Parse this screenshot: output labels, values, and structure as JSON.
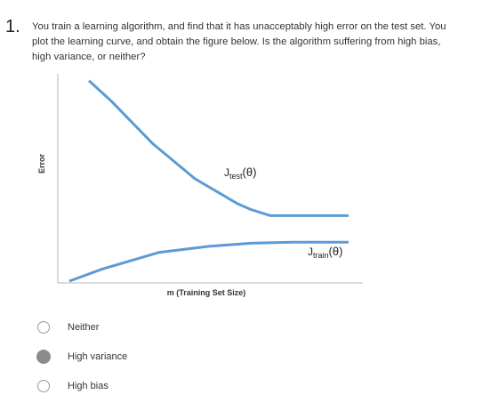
{
  "question": {
    "number": "1.",
    "text": "You train a learning algorithm, and find that it has unacceptably high error on the test set. You plot the learning curve, and obtain the figure below. Is the algorithm suffering from high bias, high variance, or neither?"
  },
  "chart_data": {
    "type": "line",
    "xlabel": "m (Training Set Size)",
    "ylabel": "Error",
    "ticks": "none",
    "grid": false,
    "line_color": "#5b9bd5",
    "series": [
      {
        "name": "J_test(θ)",
        "label_main": "J",
        "label_sub": "test",
        "label_suffix": "(θ)",
        "x": [
          0.07,
          0.15,
          0.3,
          0.45,
          0.6,
          0.65,
          0.72,
          0.85,
          1.0
        ],
        "y": [
          0.98,
          0.88,
          0.67,
          0.5,
          0.38,
          0.35,
          0.32,
          0.32,
          0.32
        ]
      },
      {
        "name": "J_train(θ)",
        "label_main": "J",
        "label_sub": "train",
        "label_suffix": "(θ)",
        "x": [
          0.0,
          0.12,
          0.32,
          0.5,
          0.65,
          0.8,
          1.0
        ],
        "y": [
          0.0,
          0.06,
          0.14,
          0.17,
          0.185,
          0.19,
          0.19
        ]
      }
    ]
  },
  "options": [
    {
      "label": "Neither",
      "selected": false
    },
    {
      "label": "High variance",
      "selected": true
    },
    {
      "label": "High bias",
      "selected": false
    }
  ]
}
